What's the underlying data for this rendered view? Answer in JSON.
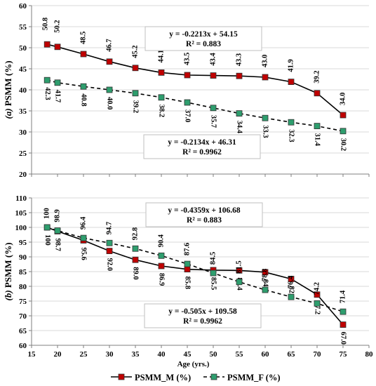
{
  "chart_data": [
    {
      "type": "line",
      "panel": "a",
      "ylabel_prefix": "(a)",
      "ylabel_text": "PSMM (%)",
      "ylim": [
        20,
        60
      ],
      "yticks": [
        20,
        25,
        30,
        35,
        40,
        45,
        50,
        55,
        60
      ],
      "xlim": [
        15,
        80
      ],
      "xticks": [
        15,
        20,
        25,
        30,
        35,
        40,
        45,
        50,
        55,
        60,
        65,
        70,
        75,
        80
      ],
      "show_x_tick_labels": false,
      "grid": "horizontal",
      "series": [
        {
          "name": "PSMM_M (%)",
          "color": "#c00000",
          "line": "solid",
          "x": [
            18,
            20,
            25,
            30,
            35,
            40,
            45,
            50,
            55,
            60,
            65,
            70,
            75
          ],
          "values": [
            50.8,
            50.2,
            48.5,
            46.7,
            45.2,
            44.1,
            43.5,
            43.4,
            43.3,
            43.0,
            41.9,
            39.2,
            34.0
          ],
          "labels": [
            "50.8",
            "50.2",
            "48.5",
            "46.7",
            "45.2",
            "44.1",
            "43.5",
            "43.4",
            "43.3",
            "43.0",
            "41.9",
            "39.2",
            "34.0"
          ]
        },
        {
          "name": "PSMM_F (%)",
          "color": "#2e9e6e",
          "line": "dashed",
          "x": [
            18,
            20,
            25,
            30,
            35,
            40,
            45,
            50,
            55,
            60,
            65,
            70,
            75
          ],
          "values": [
            42.3,
            41.7,
            40.8,
            40.0,
            39.2,
            38.2,
            37.0,
            35.7,
            34.4,
            33.3,
            32.3,
            31.4,
            30.2
          ],
          "labels": [
            "42.3",
            "41.7",
            "40.8",
            "40.0",
            "39.2",
            "38.2",
            "37.0",
            "35.7",
            "34.4",
            "33.3",
            "32.3",
            "31.4",
            "30.2"
          ]
        }
      ],
      "equations": [
        {
          "eq": "y = -0.2213x + 54.15",
          "r2": "R² = 0.883"
        },
        {
          "eq": "y = -0.2134x + 46.31",
          "r2": "R² = 0.9962"
        }
      ]
    },
    {
      "type": "line",
      "panel": "b",
      "ylabel_prefix": "(b)",
      "ylabel_text": "PSMM (%)",
      "xlabel": "Age (yrs.)",
      "ylim": [
        60,
        110
      ],
      "yticks": [
        60,
        65,
        70,
        75,
        80,
        85,
        90,
        95,
        100,
        105,
        110
      ],
      "xlim": [
        15,
        80
      ],
      "xticks": [
        15,
        20,
        25,
        30,
        35,
        40,
        45,
        50,
        55,
        60,
        65,
        70,
        75,
        80
      ],
      "show_x_tick_labels": true,
      "grid": "horizontal",
      "series": [
        {
          "name": "PSMM_M (%)",
          "color": "#c00000",
          "line": "solid",
          "x": [
            18,
            20,
            25,
            30,
            35,
            40,
            45,
            50,
            55,
            60,
            65,
            70,
            75
          ],
          "values": [
            100,
            98.7,
            95.6,
            92.0,
            89.0,
            86.9,
            85.8,
            85.5,
            85.4,
            84.8,
            82.5,
            77.2,
            67.0
          ],
          "labels": [
            "100",
            "98.7",
            "95.6",
            "92.0",
            "89.0",
            "86.9",
            "85.8",
            "85.5",
            "85.4",
            "84.8",
            "82.5",
            "77.2",
            "67.0"
          ]
        },
        {
          "name": "PSMM_F (%)",
          "color": "#2e9e6e",
          "line": "dashed",
          "x": [
            18,
            20,
            25,
            30,
            35,
            40,
            45,
            50,
            55,
            60,
            65,
            70,
            75
          ],
          "values": [
            100,
            98.9,
            96.4,
            94.7,
            92.8,
            90.4,
            87.6,
            84.5,
            81.5,
            78.8,
            76.4,
            74.2,
            71.4
          ],
          "labels": [
            "100",
            "98.9",
            "96.4",
            "94.7",
            "92.8",
            "90.4",
            "87.6",
            "84.5",
            "81.5",
            "78.8",
            "76.4",
            "74.2",
            "71.4"
          ]
        }
      ],
      "equations": [
        {
          "eq": "y = -0.4359x + 106.68",
          "r2": "R² = 0.883"
        },
        {
          "eq": "y = -0.505x + 109.58",
          "r2": "R² = 0.9962"
        }
      ]
    }
  ],
  "legend": {
    "placement": "bottom",
    "items": [
      {
        "label": "PSMM_M (%)",
        "color": "#c00000",
        "line": "solid"
      },
      {
        "label": "PSMM_F (%)",
        "color": "#2e9e6e",
        "line": "dashed"
      }
    ]
  }
}
